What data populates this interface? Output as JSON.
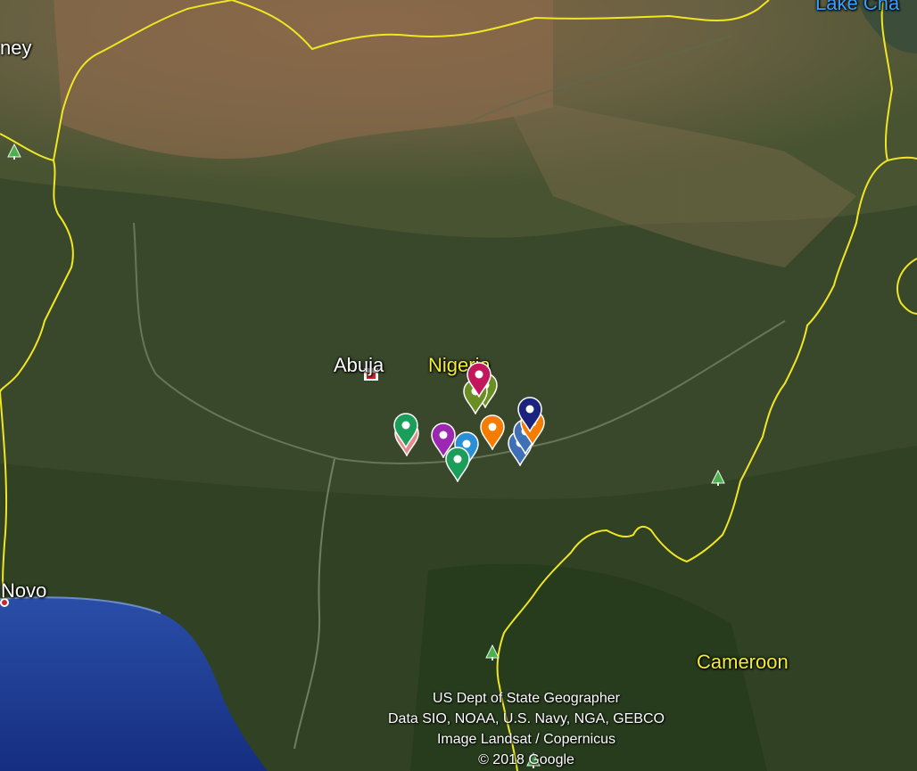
{
  "map": {
    "place_labels": {
      "country_left": "ney",
      "lake": "Lake Cha",
      "capital": "Abuja",
      "country": "Nigeria",
      "city_coast": "Novo",
      "country_right": "Cameroon"
    },
    "attribution": [
      "US Dept of State Geographer",
      "Data SIO, NOAA, U.S. Navy, NGA, GEBCO",
      "Image Landsat / Copernicus",
      "© 2018 Google"
    ],
    "marker_colors": {
      "magenta": "#c2185b",
      "green": "#1b9e5a",
      "olive": "#6b8e23",
      "purple": "#9c27b0",
      "sky": "#2a8fd6",
      "orange": "#f57c00",
      "navy": "#1a237e",
      "steel": "#3f6fb5",
      "pink": "#e58a8a"
    },
    "border_color": "#f0e624",
    "water_color": "#1f3f9a"
  }
}
